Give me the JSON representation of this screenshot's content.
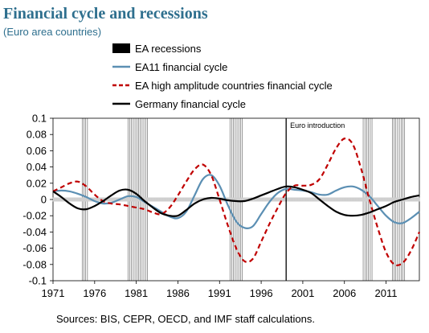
{
  "title": "Financial cycle and recessions",
  "subtitle": "(Euro area countries)",
  "source": "Sources: BIS, CEPR, OECD, and IMF staff calculations.",
  "chart_data": {
    "type": "line",
    "title": "Financial cycle and recessions",
    "subtitle": "(Euro area countries)",
    "xlim": [
      1971,
      2015
    ],
    "ylim": [
      -0.1,
      0.1
    ],
    "x_ticks": [
      1971,
      1976,
      1981,
      1986,
      1991,
      1996,
      2001,
      2006,
      2011
    ],
    "y_ticks": [
      -0.1,
      -0.08,
      -0.06,
      -0.04,
      -0.02,
      0,
      0.02,
      0.04,
      0.06,
      0.08,
      0.1
    ],
    "y_tick_labels": [
      "-0.1",
      "-0.08",
      "-0.06",
      "-0.04",
      "-0.02",
      "0",
      "0.02",
      "0.04",
      "0.06",
      "0.08",
      "0.1"
    ],
    "legend_position": "top",
    "annotation": {
      "label": "Euro introduction",
      "x": 1999
    },
    "recessions": {
      "name": "EA recessions",
      "color": "#000000",
      "periods": [
        [
          1974.5,
          1975.25
        ],
        [
          1980.0,
          1982.5
        ],
        [
          1992.25,
          1993.75
        ],
        [
          2008.25,
          2009.5
        ],
        [
          2011.75,
          2013.25
        ]
      ]
    },
    "series": [
      {
        "name": "EA11 financial cycle",
        "color": "#5b8fb3",
        "dash": "solid",
        "x": [
          1971,
          1972,
          1973,
          1974,
          1975,
          1976,
          1977,
          1978,
          1979,
          1980,
          1981,
          1982,
          1983,
          1984,
          1985,
          1986,
          1987,
          1988,
          1989,
          1990,
          1991,
          1992,
          1993,
          1994,
          1995,
          1996,
          1997,
          1998,
          1999,
          2000,
          2001,
          2002,
          2003,
          2004,
          2005,
          2006,
          2007,
          2008,
          2009,
          2010,
          2011,
          2012,
          2013,
          2014,
          2015
        ],
        "values": [
          0.01,
          0.011,
          0.01,
          0.007,
          0.003,
          -0.002,
          -0.005,
          -0.004,
          0.0,
          0.004,
          0.003,
          -0.003,
          -0.009,
          -0.015,
          -0.021,
          -0.023,
          -0.015,
          0.005,
          0.025,
          0.03,
          0.017,
          -0.007,
          -0.027,
          -0.035,
          -0.033,
          -0.018,
          -0.003,
          0.008,
          0.013,
          0.012,
          0.011,
          0.009,
          0.006,
          0.006,
          0.011,
          0.015,
          0.016,
          0.012,
          0.004,
          -0.008,
          -0.02,
          -0.028,
          -0.029,
          -0.023,
          -0.015
        ]
      },
      {
        "name": "EA high amplitude countries financial cycle",
        "color": "#c00000",
        "dash": "dashed",
        "x": [
          1971,
          1972,
          1973,
          1974,
          1975,
          1976,
          1977,
          1978,
          1979,
          1980,
          1981,
          1982,
          1983,
          1984,
          1985,
          1986,
          1987,
          1988,
          1989,
          1990,
          1991,
          1992,
          1993,
          1994,
          1995,
          1996,
          1997,
          1998,
          1999,
          2000,
          2001,
          2002,
          2003,
          2004,
          2005,
          2006,
          2007,
          2008,
          2009,
          2010,
          2011,
          2012,
          2013,
          2014,
          2015
        ],
        "values": [
          0.01,
          0.015,
          0.02,
          0.022,
          0.016,
          0.006,
          -0.002,
          -0.005,
          -0.006,
          -0.008,
          -0.01,
          -0.012,
          -0.016,
          -0.018,
          -0.01,
          0.005,
          0.022,
          0.037,
          0.043,
          0.03,
          0.0,
          -0.032,
          -0.06,
          -0.076,
          -0.073,
          -0.052,
          -0.03,
          -0.01,
          0.008,
          0.017,
          0.017,
          0.018,
          0.025,
          0.043,
          0.063,
          0.075,
          0.068,
          0.038,
          0.0,
          -0.035,
          -0.065,
          -0.08,
          -0.078,
          -0.063,
          -0.04
        ]
      },
      {
        "name": "Germany financial cycle",
        "color": "#000000",
        "dash": "solid",
        "x": [
          1971,
          1972,
          1973,
          1974,
          1975,
          1976,
          1977,
          1978,
          1979,
          1980,
          1981,
          1982,
          1983,
          1984,
          1985,
          1986,
          1987,
          1988,
          1989,
          1990,
          1991,
          1992,
          1993,
          1994,
          1995,
          1996,
          1997,
          1998,
          1999,
          2000,
          2001,
          2002,
          2003,
          2004,
          2005,
          2006,
          2007,
          2008,
          2009,
          2010,
          2011,
          2012,
          2013,
          2014,
          2015
        ],
        "values": [
          0.01,
          0.003,
          -0.005,
          -0.011,
          -0.012,
          -0.008,
          -0.002,
          0.005,
          0.011,
          0.012,
          0.007,
          -0.002,
          -0.01,
          -0.017,
          -0.02,
          -0.02,
          -0.013,
          -0.005,
          0.0,
          0.002,
          0.001,
          -0.001,
          -0.002,
          -0.002,
          0.001,
          0.005,
          0.009,
          0.013,
          0.016,
          0.015,
          0.012,
          0.008,
          0.0,
          -0.008,
          -0.015,
          -0.019,
          -0.02,
          -0.019,
          -0.016,
          -0.012,
          -0.008,
          -0.003,
          0.0,
          0.003,
          0.005
        ]
      }
    ]
  }
}
